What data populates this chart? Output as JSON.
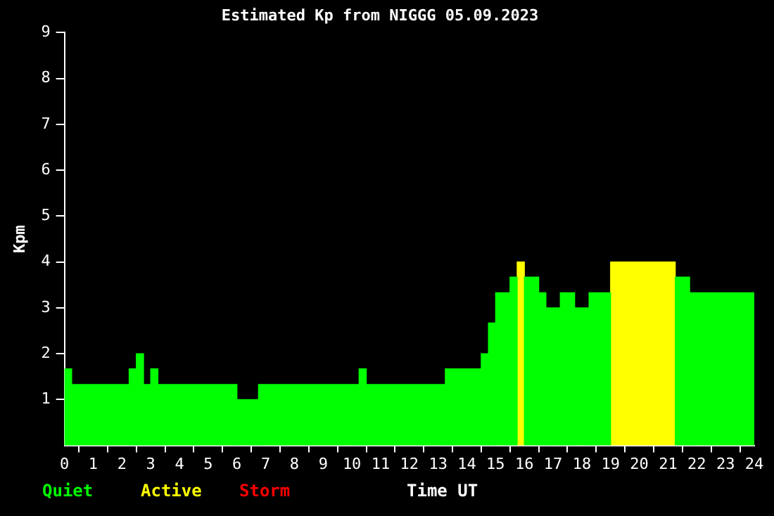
{
  "chart_data": {
    "type": "histogram",
    "title": "Estimated Kp from NIGGG 05.09.2023",
    "xlabel": "Time UT",
    "ylabel": "Kpm",
    "bins": [
      0,
      0.25,
      2.25,
      2.5,
      2.75,
      3,
      3.25,
      6,
      6.75,
      10.25,
      10.5,
      13.25,
      14.5,
      14.75,
      15,
      15.5,
      15.75,
      16,
      16.5,
      16.75,
      17.25,
      17.75,
      18.25,
      19,
      21.25,
      21.75,
      24
    ],
    "series": [
      {
        "name": "Quiet",
        "color": "#00ff00",
        "values": [
          1.67,
          1.33,
          1.67,
          2,
          1.33,
          1.67,
          1.33,
          1,
          1.33,
          1.67,
          1.33,
          1.67,
          2,
          2.67,
          3.33,
          3.67,
          null,
          3.67,
          3.33,
          3,
          3.33,
          3,
          3.33,
          null,
          3.67,
          3.33
        ]
      },
      {
        "name": "Active",
        "color": "#ffff00",
        "values": [
          null,
          null,
          null,
          null,
          null,
          null,
          null,
          null,
          null,
          null,
          null,
          null,
          null,
          null,
          null,
          null,
          4,
          null,
          null,
          null,
          null,
          null,
          null,
          4,
          null,
          null
        ]
      }
    ],
    "annotations": [
      "Storm"
    ],
    "xlim": [
      0,
      24
    ],
    "xticks": [
      0,
      1,
      2,
      3,
      4,
      5,
      6,
      7,
      8,
      9,
      10,
      11,
      12,
      13,
      14,
      15,
      16,
      17,
      18,
      19,
      20,
      21,
      22,
      23,
      24
    ],
    "ylim": [
      0,
      9
    ],
    "yticks": [
      1,
      2,
      3,
      4,
      5,
      6,
      7,
      8,
      9
    ],
    "grid": false,
    "legend": "bottom left"
  }
}
